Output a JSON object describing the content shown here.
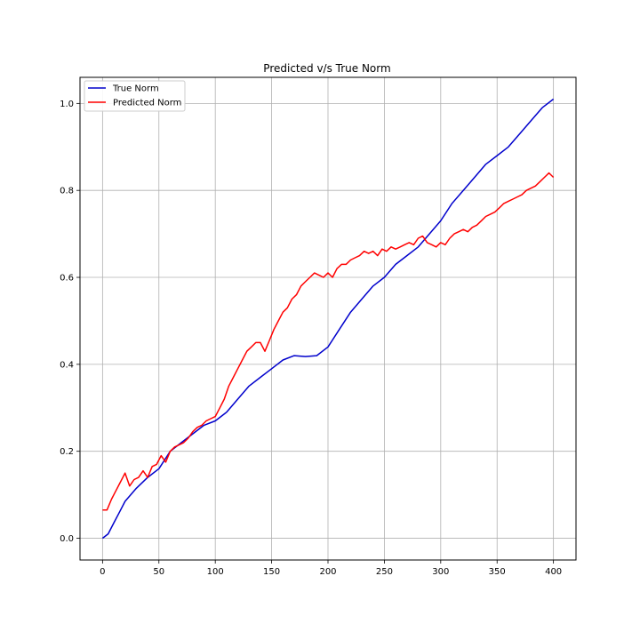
{
  "chart_data": {
    "type": "line",
    "title": "Predicted v/s True Norm",
    "xlabel": "",
    "ylabel": "",
    "xlim": [
      -20,
      420
    ],
    "ylim": [
      -0.05,
      1.06
    ],
    "x_ticks": [
      0,
      50,
      100,
      150,
      200,
      250,
      300,
      350,
      400
    ],
    "y_ticks": [
      0.0,
      0.2,
      0.4,
      0.6,
      0.8,
      1.0
    ],
    "x_tick_labels": [
      "0",
      "50",
      "100",
      "150",
      "200",
      "250",
      "300",
      "350",
      "400"
    ],
    "y_tick_labels": [
      "0.0",
      "0.2",
      "0.4",
      "0.6",
      "0.8",
      "1.0"
    ],
    "grid": true,
    "legend_position": "top-left",
    "series": [
      {
        "name": "True Norm",
        "color": "#0000cc",
        "x": [
          0,
          5,
          10,
          15,
          20,
          30,
          40,
          50,
          60,
          70,
          80,
          90,
          100,
          110,
          120,
          130,
          140,
          150,
          160,
          170,
          180,
          190,
          200,
          210,
          220,
          230,
          240,
          250,
          260,
          270,
          280,
          290,
          300,
          310,
          320,
          330,
          340,
          350,
          360,
          370,
          380,
          390,
          400
        ],
        "values": [
          0.0,
          0.01,
          0.035,
          0.06,
          0.085,
          0.115,
          0.14,
          0.16,
          0.2,
          0.22,
          0.24,
          0.26,
          0.27,
          0.29,
          0.32,
          0.35,
          0.37,
          0.39,
          0.41,
          0.42,
          0.418,
          0.42,
          0.44,
          0.48,
          0.52,
          0.55,
          0.58,
          0.6,
          0.63,
          0.65,
          0.67,
          0.7,
          0.73,
          0.77,
          0.8,
          0.83,
          0.86,
          0.88,
          0.9,
          0.93,
          0.96,
          0.99,
          1.01
        ]
      },
      {
        "name": "Predicted Norm",
        "color": "#ff0000",
        "x": [
          0,
          4,
          8,
          12,
          16,
          20,
          24,
          28,
          32,
          36,
          40,
          44,
          48,
          52,
          56,
          60,
          64,
          68,
          72,
          76,
          80,
          84,
          88,
          92,
          96,
          100,
          104,
          108,
          112,
          116,
          120,
          124,
          128,
          132,
          136,
          140,
          144,
          148,
          152,
          156,
          160,
          164,
          168,
          172,
          176,
          180,
          184,
          188,
          192,
          196,
          200,
          204,
          208,
          212,
          216,
          220,
          224,
          228,
          232,
          236,
          240,
          244,
          248,
          252,
          256,
          260,
          264,
          268,
          272,
          276,
          280,
          284,
          288,
          292,
          296,
          300,
          304,
          308,
          312,
          316,
          320,
          324,
          328,
          332,
          336,
          340,
          344,
          348,
          352,
          356,
          360,
          364,
          368,
          372,
          376,
          380,
          384,
          388,
          392,
          396,
          400
        ],
        "values": [
          0.065,
          0.065,
          0.09,
          0.11,
          0.13,
          0.15,
          0.12,
          0.135,
          0.14,
          0.155,
          0.14,
          0.165,
          0.17,
          0.19,
          0.175,
          0.2,
          0.21,
          0.215,
          0.22,
          0.23,
          0.245,
          0.255,
          0.26,
          0.27,
          0.275,
          0.28,
          0.3,
          0.32,
          0.35,
          0.37,
          0.39,
          0.41,
          0.43,
          0.44,
          0.45,
          0.45,
          0.43,
          0.455,
          0.48,
          0.5,
          0.52,
          0.53,
          0.55,
          0.56,
          0.58,
          0.59,
          0.6,
          0.61,
          0.605,
          0.6,
          0.61,
          0.6,
          0.62,
          0.63,
          0.63,
          0.64,
          0.645,
          0.65,
          0.66,
          0.655,
          0.66,
          0.65,
          0.665,
          0.66,
          0.67,
          0.665,
          0.67,
          0.675,
          0.68,
          0.675,
          0.69,
          0.695,
          0.68,
          0.675,
          0.67,
          0.68,
          0.675,
          0.69,
          0.7,
          0.705,
          0.71,
          0.705,
          0.715,
          0.72,
          0.73,
          0.74,
          0.745,
          0.75,
          0.76,
          0.77,
          0.775,
          0.78,
          0.785,
          0.79,
          0.8,
          0.805,
          0.81,
          0.82,
          0.83,
          0.84,
          0.83
        ]
      }
    ]
  }
}
